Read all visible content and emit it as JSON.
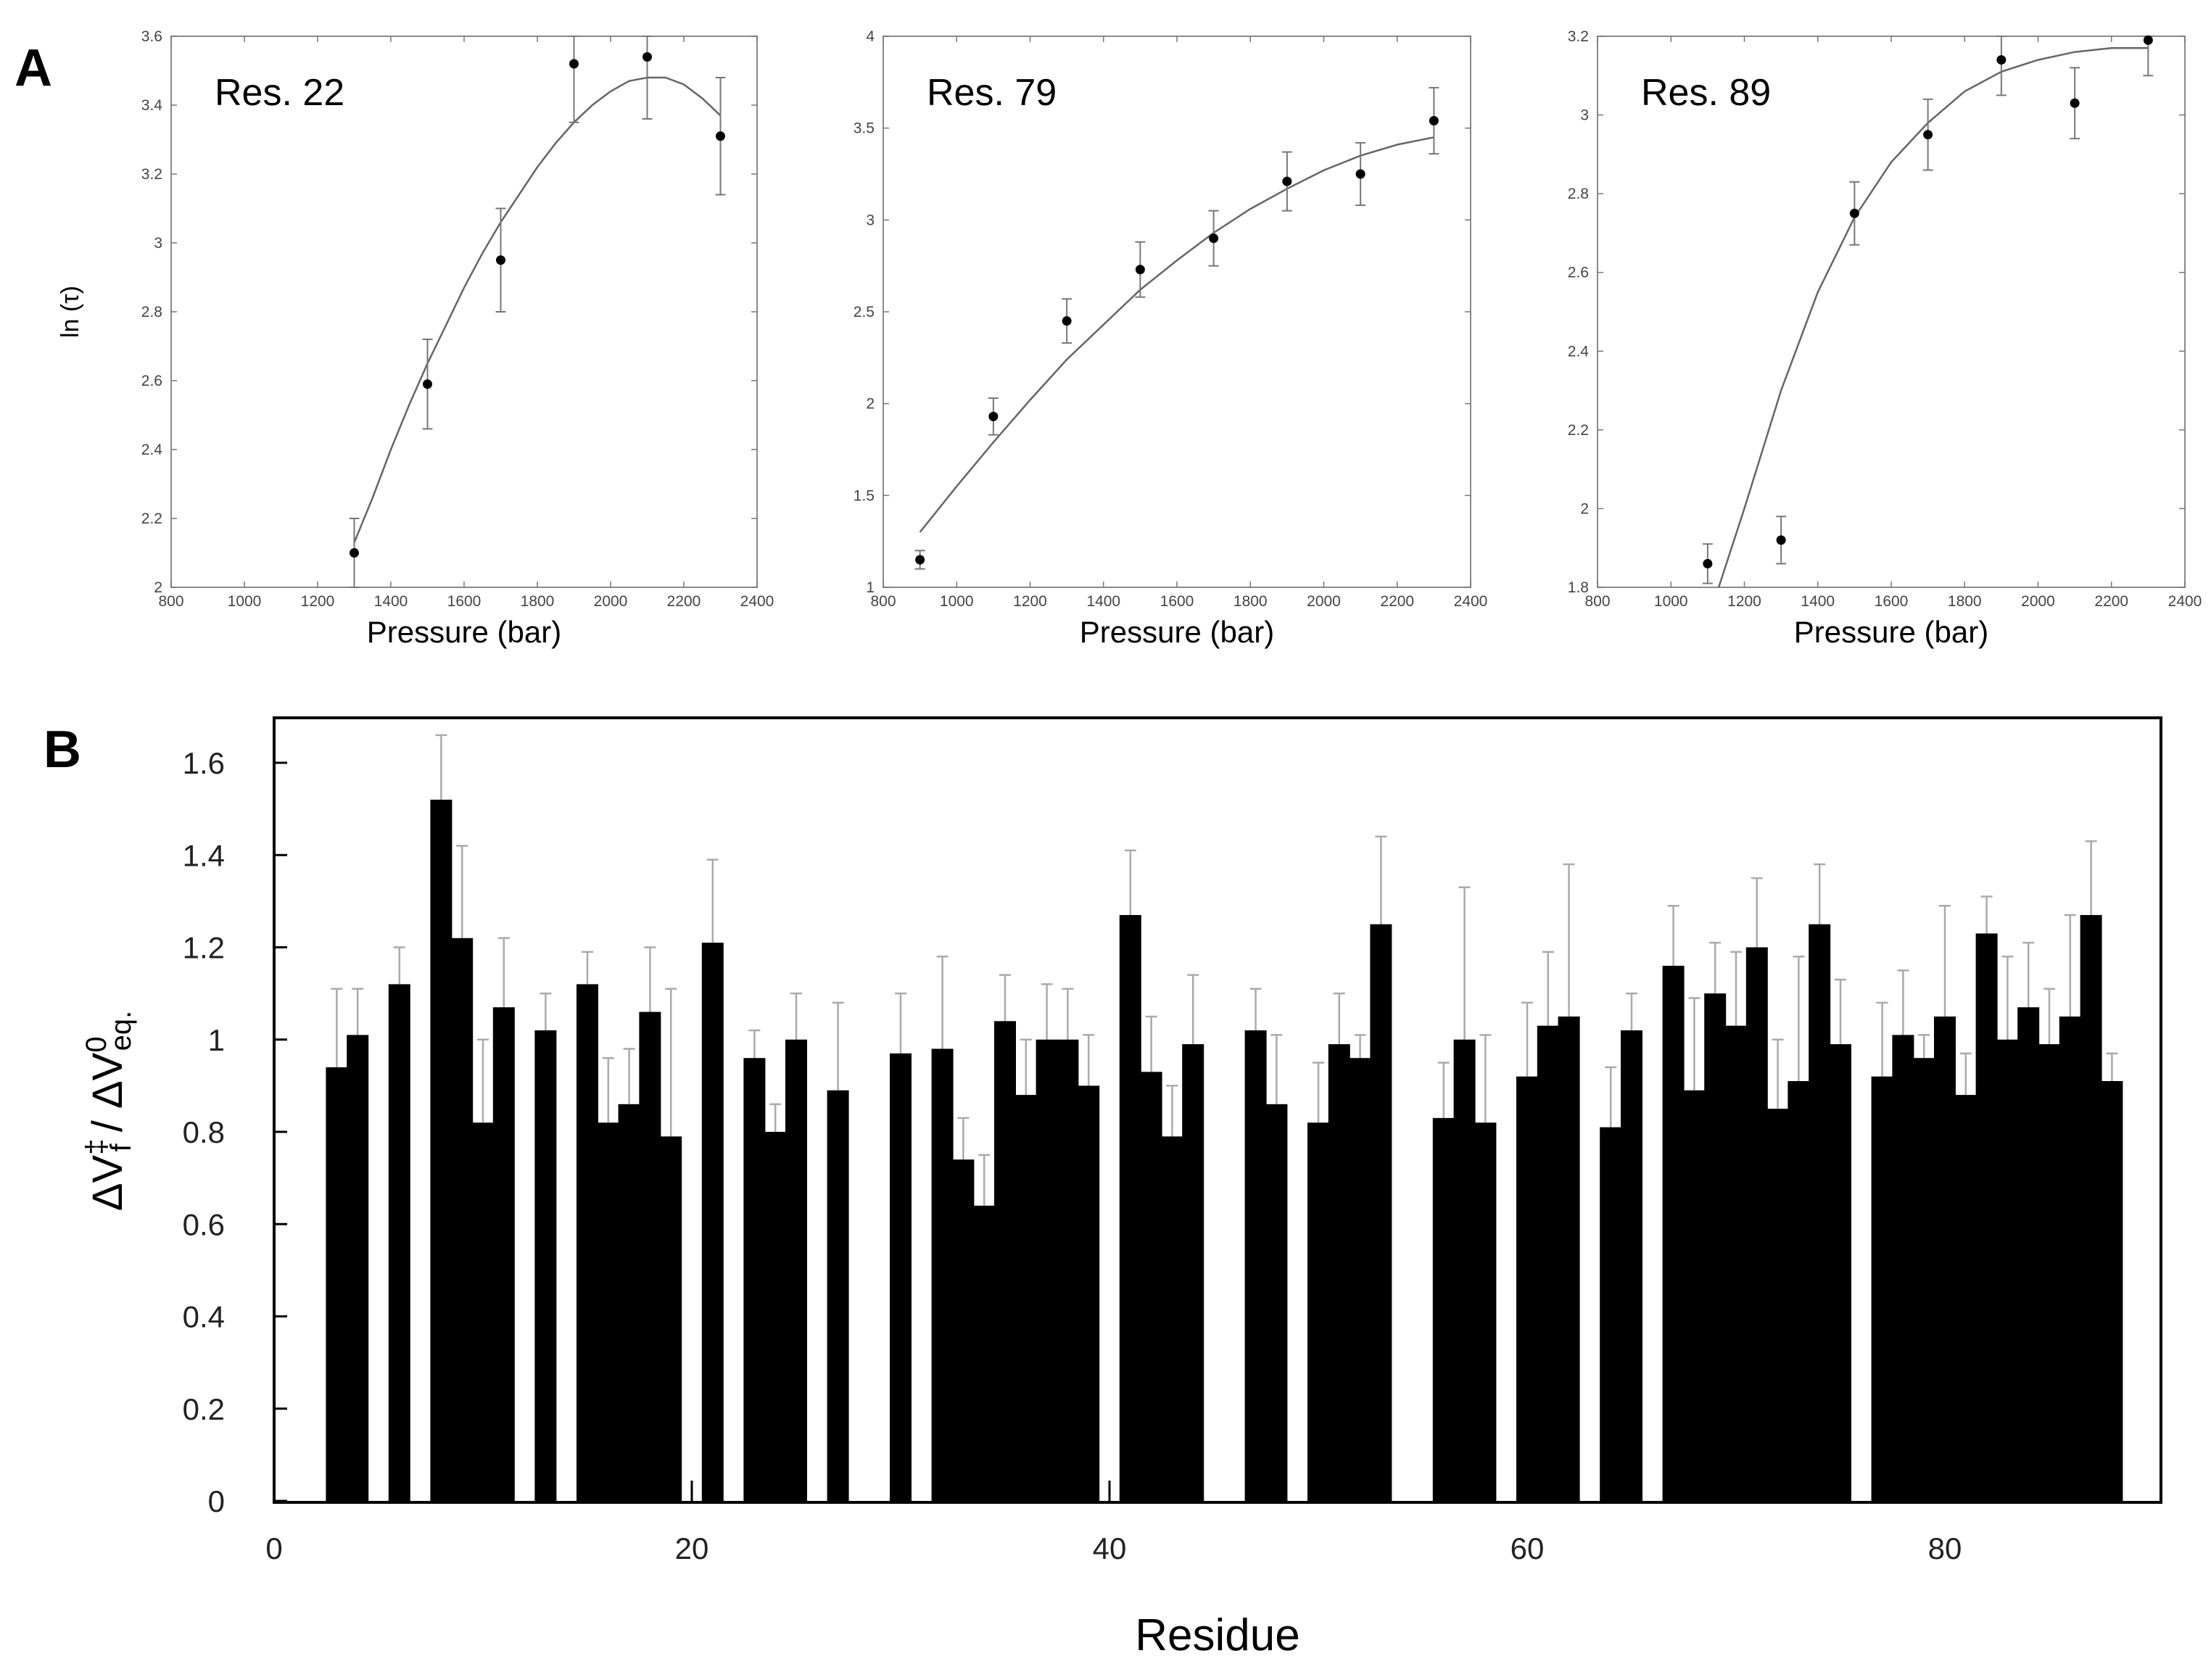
{
  "figure_labels": {
    "a": "A",
    "b": "B"
  },
  "chart_data": [
    {
      "type": "scatter",
      "title": "Res. 22",
      "xlabel": "Pressure (bar)",
      "ylabel": "ln (τ)",
      "xlim": [
        800,
        2400
      ],
      "ylim": [
        2,
        3.6
      ],
      "xticks": [
        800,
        1000,
        1200,
        1400,
        1600,
        1800,
        2000,
        2200,
        2400
      ],
      "yticks": [
        2,
        2.2,
        2.4,
        2.6,
        2.8,
        3,
        3.2,
        3.4,
        3.6
      ],
      "ytick_labels": [
        "2",
        "2.2",
        "2.4",
        "2.6",
        "2.8",
        "3",
        "3.2",
        "3.4",
        "3.6"
      ],
      "points": {
        "x": [
          1300,
          1500,
          1700,
          1900,
          2100,
          2300
        ],
        "y": [
          2.1,
          2.59,
          2.95,
          3.52,
          3.54,
          3.31
        ],
        "err": [
          0.1,
          0.13,
          0.15,
          0.17,
          0.18,
          0.17
        ]
      },
      "fit": {
        "x": [
          1300,
          1350,
          1400,
          1450,
          1500,
          1550,
          1600,
          1650,
          1700,
          1750,
          1800,
          1850,
          1900,
          1950,
          2000,
          2050,
          2100,
          2150,
          2200,
          2250,
          2300
        ],
        "y": [
          2.13,
          2.26,
          2.4,
          2.53,
          2.65,
          2.76,
          2.87,
          2.97,
          3.06,
          3.14,
          3.22,
          3.29,
          3.35,
          3.4,
          3.44,
          3.47,
          3.48,
          3.48,
          3.46,
          3.42,
          3.37
        ]
      }
    },
    {
      "type": "scatter",
      "title": "Res. 79",
      "xlabel": "Pressure (bar)",
      "ylabel": "",
      "xlim": [
        800,
        2400
      ],
      "ylim": [
        1,
        4
      ],
      "xticks": [
        800,
        1000,
        1200,
        1400,
        1600,
        1800,
        2000,
        2200,
        2400
      ],
      "yticks": [
        1,
        1.5,
        2,
        2.5,
        3,
        3.5,
        4
      ],
      "ytick_labels": [
        "1",
        "1.5",
        "2",
        "2.5",
        "3",
        "3.5",
        "4"
      ],
      "points": {
        "x": [
          900,
          1100,
          1300,
          1500,
          1700,
          1900,
          2100,
          2300
        ],
        "y": [
          1.15,
          1.93,
          2.45,
          2.73,
          2.9,
          3.21,
          3.25,
          3.54
        ],
        "err": [
          0.05,
          0.1,
          0.12,
          0.15,
          0.15,
          0.16,
          0.17,
          0.18
        ]
      },
      "fit": {
        "x": [
          900,
          1000,
          1100,
          1200,
          1300,
          1400,
          1500,
          1600,
          1700,
          1800,
          1900,
          2000,
          2100,
          2200,
          2300
        ],
        "y": [
          1.3,
          1.55,
          1.79,
          2.02,
          2.24,
          2.43,
          2.62,
          2.78,
          2.93,
          3.06,
          3.17,
          3.27,
          3.35,
          3.41,
          3.45
        ]
      }
    },
    {
      "type": "scatter",
      "title": "Res. 89",
      "xlabel": "Pressure (bar)",
      "ylabel": "",
      "xlim": [
        800,
        2400
      ],
      "ylim": [
        1.8,
        3.2
      ],
      "xticks": [
        800,
        1000,
        1200,
        1400,
        1600,
        1800,
        2000,
        2200,
        2400
      ],
      "yticks": [
        1.8,
        2,
        2.2,
        2.4,
        2.6,
        2.8,
        3,
        3.2
      ],
      "ytick_labels": [
        "1.8",
        "2",
        "2.2",
        "2.4",
        "2.6",
        "2.8",
        "3",
        "3.2"
      ],
      "points": {
        "x": [
          1100,
          1300,
          1500,
          1700,
          1900,
          2100,
          2300
        ],
        "y": [
          1.86,
          1.92,
          2.75,
          2.95,
          3.14,
          3.03,
          3.19
        ],
        "err": [
          0.05,
          0.06,
          0.08,
          0.09,
          0.09,
          0.09,
          0.09
        ]
      },
      "fit": {
        "x": [
          1130,
          1200,
          1300,
          1400,
          1500,
          1600,
          1700,
          1800,
          1900,
          2000,
          2100,
          2200,
          2300
        ],
        "y": [
          1.8,
          2.0,
          2.3,
          2.55,
          2.74,
          2.88,
          2.98,
          3.06,
          3.11,
          3.14,
          3.16,
          3.17,
          3.17
        ]
      }
    },
    {
      "type": "bar",
      "title": "",
      "xlabel": "Residue",
      "ylabel": "ΔV‡f / ΔV0eq.",
      "xlim": [
        0,
        90
      ],
      "ylim": [
        0,
        1.7
      ],
      "xticks": [
        0,
        20,
        40,
        60,
        80
      ],
      "yticks": [
        0,
        0.2,
        0.4,
        0.6,
        0.8,
        1,
        1.2,
        1.4,
        1.6
      ],
      "ytick_labels": [
        "0",
        "0.2",
        "0.4",
        "0.6",
        "0.8",
        "1",
        "1.2",
        "1.4",
        "1.6"
      ],
      "residues": [
        3,
        4,
        6,
        8,
        9,
        10,
        11,
        13,
        15,
        16,
        17,
        18,
        19,
        21,
        23,
        24,
        25,
        27,
        30,
        32,
        33,
        34,
        35,
        36,
        37,
        38,
        39,
        41,
        42,
        43,
        44,
        47,
        48,
        50,
        51,
        52,
        53,
        56,
        57,
        58,
        60,
        61,
        62,
        64,
        65,
        67,
        68,
        69,
        70,
        71,
        72,
        73,
        74,
        75,
        77,
        78,
        79,
        80,
        81,
        82,
        83,
        84,
        85,
        86,
        87,
        88
      ],
      "values": [
        0.94,
        1.01,
        1.12,
        1.52,
        1.22,
        0.82,
        1.07,
        1.02,
        1.12,
        0.82,
        0.86,
        1.06,
        0.79,
        1.21,
        0.96,
        0.8,
        1.0,
        0.89,
        0.97,
        0.98,
        0.74,
        0.64,
        1.04,
        0.88,
        1.0,
        1.0,
        0.9,
        1.27,
        0.93,
        0.79,
        0.99,
        1.02,
        0.86,
        0.82,
        0.99,
        0.96,
        1.25,
        0.83,
        1.0,
        0.82,
        0.92,
        1.03,
        1.05,
        0.81,
        1.02,
        1.16,
        0.89,
        1.1,
        1.03,
        1.2,
        0.85,
        0.91,
        1.25,
        0.99,
        0.92,
        1.01,
        0.96,
        1.05,
        0.88,
        1.23,
        1.0,
        1.07,
        0.99,
        1.05,
        1.27,
        0.91
      ],
      "errors": [
        0.17,
        0.1,
        0.08,
        0.14,
        0.2,
        0.18,
        0.15,
        0.08,
        0.07,
        0.14,
        0.12,
        0.14,
        0.32,
        0.18,
        0.06,
        0.06,
        0.1,
        0.19,
        0.13,
        0.2,
        0.09,
        0.11,
        0.1,
        0.12,
        0.12,
        0.11,
        0.11,
        0.14,
        0.12,
        0.11,
        0.15,
        0.09,
        0.15,
        0.13,
        0.11,
        0.05,
        0.19,
        0.12,
        0.33,
        0.19,
        0.16,
        0.16,
        0.33,
        0.13,
        0.08,
        0.13,
        0.2,
        0.11,
        0.16,
        0.15,
        0.15,
        0.27,
        0.13,
        0.14,
        0.16,
        0.14,
        0.05,
        0.24,
        0.09,
        0.08,
        0.18,
        0.14,
        0.12,
        0.22,
        0.16,
        0.06
      ]
    }
  ]
}
